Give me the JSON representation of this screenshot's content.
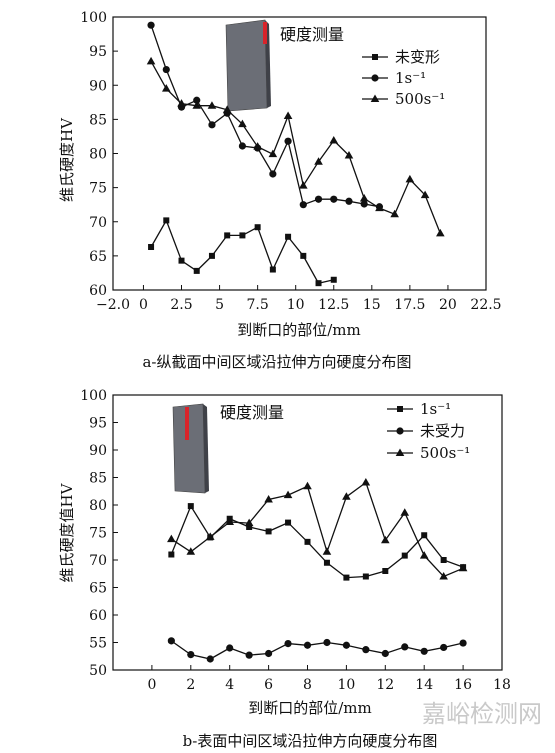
{
  "charts": [
    {
      "caption": "a-纵截面中间区域沿拉伸方向硬度分布图",
      "inset_label": "硬度测量",
      "legend": [
        "未变形",
        "1s⁻¹",
        "500s⁻¹"
      ]
    },
    {
      "caption": "b-表面中间区域沿拉伸方向硬度分布图",
      "inset_label": "硬度测量",
      "legend": [
        "1s⁻¹",
        "未受力",
        "500s⁻¹"
      ]
    }
  ],
  "watermark": "嘉峪检测网",
  "chart_data": [
    {
      "type": "line",
      "title": "",
      "xlabel": "到断口的部位/mm",
      "ylabel": "维氏硬度HV",
      "xlim": [
        -2.0,
        22.5
      ],
      "ylim": [
        60,
        100
      ],
      "xticks": [
        "−2.0",
        "0",
        "2.5",
        "5",
        "7.5",
        "10",
        "12.5",
        "15",
        "17.5",
        "20",
        "22.5"
      ],
      "xtick_values": [
        -2.0,
        0,
        2.5,
        5,
        7.5,
        10,
        12.5,
        15,
        17.5,
        20,
        22.5
      ],
      "yticks": [
        "60",
        "65",
        "70",
        "75",
        "80",
        "85",
        "90",
        "95",
        "100"
      ],
      "ytick_values": [
        60,
        65,
        70,
        75,
        80,
        85,
        90,
        95,
        100
      ],
      "legend_position": "top-right",
      "series": [
        {
          "name": "未变形",
          "marker": "square",
          "points": [
            [
              0.5,
              66.3
            ],
            [
              1.5,
              70.2
            ],
            [
              2.5,
              64.3
            ],
            [
              3.5,
              62.8
            ],
            [
              4.5,
              65.0
            ],
            [
              5.5,
              68.0
            ],
            [
              6.5,
              68.0
            ],
            [
              7.5,
              69.2
            ],
            [
              8.5,
              63.0
            ],
            [
              9.5,
              67.8
            ],
            [
              10.5,
              65.0
            ],
            [
              11.5,
              61.0
            ],
            [
              12.5,
              61.5
            ]
          ]
        },
        {
          "name": "1s⁻¹",
          "marker": "circle",
          "points": [
            [
              0.5,
              98.8
            ],
            [
              1.5,
              92.3
            ],
            [
              2.5,
              86.8
            ],
            [
              3.5,
              87.8
            ],
            [
              4.5,
              84.2
            ],
            [
              5.5,
              85.9
            ],
            [
              6.5,
              81.1
            ],
            [
              7.5,
              80.8
            ],
            [
              8.5,
              77.0
            ],
            [
              9.5,
              81.8
            ],
            [
              10.5,
              72.5
            ],
            [
              11.5,
              73.3
            ],
            [
              12.5,
              73.3
            ],
            [
              13.5,
              73.0
            ],
            [
              14.5,
              72.6
            ],
            [
              15.5,
              72.2
            ]
          ]
        },
        {
          "name": "500s⁻¹",
          "marker": "triangle",
          "points": [
            [
              0.5,
              93.5
            ],
            [
              1.5,
              89.5
            ],
            [
              2.5,
              87.3
            ],
            [
              3.5,
              87.0
            ],
            [
              4.5,
              87.0
            ],
            [
              5.5,
              86.4
            ],
            [
              6.5,
              84.3
            ],
            [
              7.5,
              81.0
            ],
            [
              8.5,
              79.9
            ],
            [
              9.5,
              85.5
            ],
            [
              10.5,
              75.3
            ],
            [
              11.5,
              78.8
            ],
            [
              12.5,
              81.9
            ],
            [
              13.5,
              79.7
            ],
            [
              14.5,
              73.4
            ],
            [
              15.5,
              72.0
            ],
            [
              16.5,
              71.1
            ],
            [
              17.5,
              76.2
            ],
            [
              18.5,
              73.9
            ],
            [
              19.5,
              68.3
            ]
          ]
        }
      ]
    },
    {
      "type": "line",
      "title": "",
      "xlabel": "到断口的部位/mm",
      "ylabel": "维氏硬度值HV",
      "xlim": [
        -2,
        18
      ],
      "ylim": [
        50,
        100
      ],
      "xticks": [
        "0",
        "2",
        "4",
        "6",
        "8",
        "10",
        "12",
        "14",
        "16",
        "18"
      ],
      "xtick_values": [
        0,
        2,
        4,
        6,
        8,
        10,
        12,
        14,
        16,
        18
      ],
      "yticks": [
        "50",
        "55",
        "60",
        "65",
        "70",
        "75",
        "80",
        "85",
        "90",
        "95",
        "100"
      ],
      "ytick_values": [
        50,
        55,
        60,
        65,
        70,
        75,
        80,
        85,
        90,
        95,
        100
      ],
      "legend_position": "top-right",
      "series": [
        {
          "name": "1s⁻¹",
          "marker": "square",
          "points": [
            [
              1,
              71.0
            ],
            [
              2,
              79.8
            ],
            [
              3,
              74.1
            ],
            [
              4,
              77.5
            ],
            [
              5,
              76.0
            ],
            [
              6,
              75.2
            ],
            [
              7,
              76.8
            ],
            [
              8,
              73.3
            ],
            [
              9,
              69.5
            ],
            [
              10,
              66.8
            ],
            [
              11,
              67.0
            ],
            [
              12,
              68.0
            ],
            [
              13,
              70.8
            ],
            [
              14,
              74.5
            ],
            [
              15,
              70.0
            ],
            [
              16,
              68.7
            ]
          ]
        },
        {
          "name": "未受力",
          "marker": "circle",
          "points": [
            [
              1,
              55.3
            ],
            [
              2,
              52.8
            ],
            [
              3,
              52.0
            ],
            [
              4,
              54.0
            ],
            [
              5,
              52.7
            ],
            [
              6,
              53.0
            ],
            [
              7,
              54.8
            ],
            [
              8,
              54.5
            ],
            [
              9,
              55.0
            ],
            [
              10,
              54.5
            ],
            [
              11,
              53.7
            ],
            [
              12,
              53.0
            ],
            [
              13,
              54.2
            ],
            [
              14,
              53.4
            ],
            [
              15,
              54.1
            ],
            [
              16,
              54.9
            ]
          ]
        },
        {
          "name": "500s⁻¹",
          "marker": "triangle",
          "points": [
            [
              1,
              73.8
            ],
            [
              2,
              71.5
            ],
            [
              3,
              74.2
            ],
            [
              4,
              76.9
            ],
            [
              5,
              76.7
            ],
            [
              6,
              81.0
            ],
            [
              7,
              81.8
            ],
            [
              8,
              83.4
            ],
            [
              9,
              71.5
            ],
            [
              10,
              81.5
            ],
            [
              11,
              84.1
            ],
            [
              12,
              73.6
            ],
            [
              13,
              78.6
            ],
            [
              14,
              70.8
            ],
            [
              15,
              67.0
            ],
            [
              16,
              68.5
            ]
          ]
        }
      ]
    }
  ]
}
